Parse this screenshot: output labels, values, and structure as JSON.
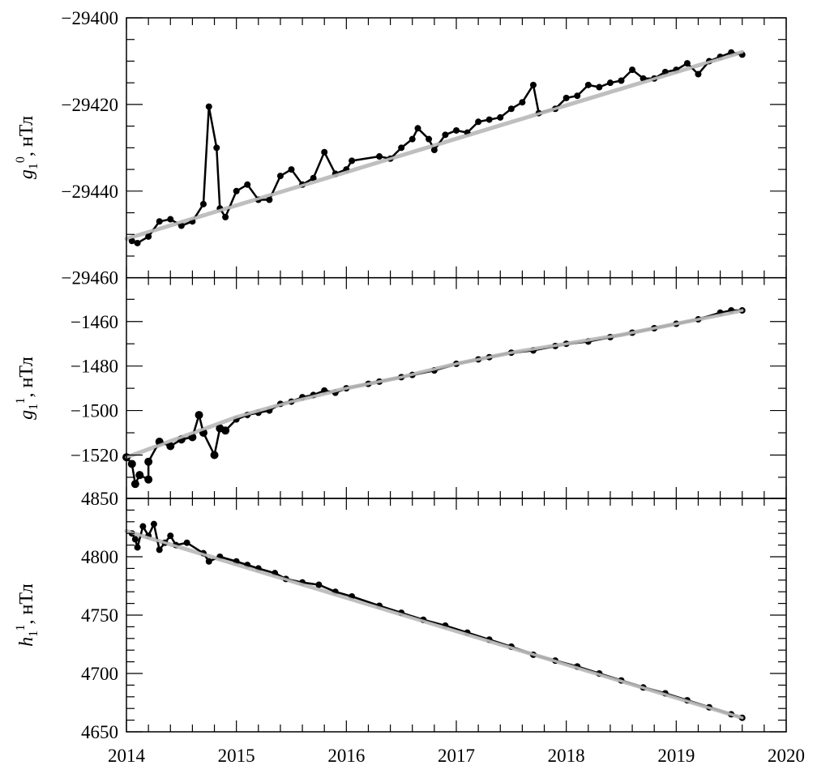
{
  "chart_data": {
    "type": "scatter",
    "x_axis": {
      "range": [
        2014,
        2020
      ],
      "ticks": [
        "2014",
        "2015",
        "2016",
        "2017",
        "2018",
        "2019",
        "2020"
      ],
      "minor_step": 0.2
    },
    "colors": {
      "points": "#000000",
      "fit": "#bfbfbf",
      "axes": "#000000"
    },
    "grid": false,
    "panels": [
      {
        "ylabel": {
          "symbol": "g",
          "sub": "1",
          "sup": "0",
          "unit": ", нТл"
        },
        "ylim": [
          -29460,
          -29400
        ],
        "yticks": [
          "-29460",
          "-29440",
          "-29420",
          "-29400"
        ],
        "ytick_values": [
          -29460,
          -29440,
          -29420,
          -29400
        ],
        "minor_step": 5,
        "points": [
          [
            2014.05,
            -29451.5
          ],
          [
            2014.1,
            -29452
          ],
          [
            2014.2,
            -29450.5
          ],
          [
            2014.3,
            -29447
          ],
          [
            2014.4,
            -29446.5
          ],
          [
            2014.5,
            -29448
          ],
          [
            2014.6,
            -29447
          ],
          [
            2014.7,
            -29443
          ],
          [
            2014.75,
            -29420.5
          ],
          [
            2014.82,
            -29430
          ],
          [
            2014.85,
            -29444
          ],
          [
            2014.9,
            -29446
          ],
          [
            2015.0,
            -29440
          ],
          [
            2015.1,
            -29438.5
          ],
          [
            2015.2,
            -29442
          ],
          [
            2015.3,
            -29442
          ],
          [
            2015.4,
            -29436.5
          ],
          [
            2015.5,
            -29435
          ],
          [
            2015.6,
            -29438.5
          ],
          [
            2015.7,
            -29437
          ],
          [
            2015.8,
            -29431
          ],
          [
            2015.9,
            -29436
          ],
          [
            2016.0,
            -29435
          ],
          [
            2016.05,
            -29433
          ],
          [
            2016.3,
            -29432
          ],
          [
            2016.4,
            -29432.5
          ],
          [
            2016.5,
            -29430
          ],
          [
            2016.6,
            -29428
          ],
          [
            2016.65,
            -29425.5
          ],
          [
            2016.75,
            -29428
          ],
          [
            2016.8,
            -29430.5
          ],
          [
            2016.9,
            -29427
          ],
          [
            2017.0,
            -29426
          ],
          [
            2017.1,
            -29426.5
          ],
          [
            2017.2,
            -29424
          ],
          [
            2017.3,
            -29423.5
          ],
          [
            2017.4,
            -29423
          ],
          [
            2017.5,
            -29421
          ],
          [
            2017.6,
            -29419.5
          ],
          [
            2017.7,
            -29415.5
          ],
          [
            2017.75,
            -29422
          ],
          [
            2017.9,
            -29421
          ],
          [
            2018.0,
            -29418.5
          ],
          [
            2018.1,
            -29418
          ],
          [
            2018.2,
            -29415.5
          ],
          [
            2018.3,
            -29416
          ],
          [
            2018.4,
            -29415
          ],
          [
            2018.5,
            -29414.5
          ],
          [
            2018.6,
            -29412
          ],
          [
            2018.7,
            -29414
          ],
          [
            2018.8,
            -29414
          ],
          [
            2018.9,
            -29412.5
          ],
          [
            2019.0,
            -29412
          ],
          [
            2019.1,
            -29410.5
          ],
          [
            2019.2,
            -29413
          ],
          [
            2019.3,
            -29410
          ],
          [
            2019.4,
            -29409
          ],
          [
            2019.5,
            -29408
          ],
          [
            2019.6,
            -29408.5
          ]
        ],
        "fit": [
          [
            2014.0,
            -29451
          ],
          [
            2019.6,
            -29407.9
          ]
        ]
      },
      {
        "ylabel": {
          "symbol": "g",
          "sub": "1",
          "sup": "1",
          "unit": ", нТл"
        },
        "ylim": [
          -1539.5,
          -1440.3
        ],
        "yticks": [
          "-1520",
          "-1500",
          "-1480",
          "-1460"
        ],
        "ytick_values": [
          -1520,
          -1500,
          -1480,
          -1460
        ],
        "minor_step": 10,
        "points": [
          [
            2014.0,
            -1521
          ],
          [
            2014.05,
            -1524
          ],
          [
            2014.08,
            -1533
          ],
          [
            2014.12,
            -1529
          ],
          [
            2014.2,
            -1531
          ],
          [
            2014.2,
            -1523
          ],
          [
            2014.3,
            -1514
          ],
          [
            2014.4,
            -1516
          ],
          [
            2014.5,
            -1513
          ],
          [
            2014.6,
            -1512
          ],
          [
            2014.66,
            -1502
          ],
          [
            2014.7,
            -1510
          ],
          [
            2014.8,
            -1520
          ],
          [
            2014.85,
            -1508
          ],
          [
            2014.9,
            -1509
          ],
          [
            2015.0,
            -1504
          ],
          [
            2015.1,
            -1502
          ],
          [
            2015.2,
            -1501
          ],
          [
            2015.3,
            -1500
          ],
          [
            2015.4,
            -1497
          ],
          [
            2015.5,
            -1496
          ],
          [
            2015.6,
            -1494
          ],
          [
            2015.7,
            -1493
          ],
          [
            2015.8,
            -1491
          ],
          [
            2015.9,
            -1492
          ],
          [
            2016.0,
            -1490
          ],
          [
            2016.2,
            -1488
          ],
          [
            2016.3,
            -1487
          ],
          [
            2016.5,
            -1485
          ],
          [
            2016.6,
            -1484
          ],
          [
            2016.8,
            -1482
          ],
          [
            2017.0,
            -1479
          ],
          [
            2017.2,
            -1477
          ],
          [
            2017.3,
            -1476
          ],
          [
            2017.5,
            -1474
          ],
          [
            2017.7,
            -1473
          ],
          [
            2017.9,
            -1471
          ],
          [
            2018.0,
            -1470
          ],
          [
            2018.2,
            -1469
          ],
          [
            2018.4,
            -1467
          ],
          [
            2018.6,
            -1465
          ],
          [
            2018.8,
            -1463
          ],
          [
            2019.0,
            -1461
          ],
          [
            2019.2,
            -1459
          ],
          [
            2019.4,
            -1456
          ],
          [
            2019.5,
            -1455
          ],
          [
            2019.6,
            -1455
          ]
        ],
        "fit": [
          [
            2014.0,
            -1521
          ],
          [
            2014.5,
            -1512
          ],
          [
            2015.0,
            -1503
          ],
          [
            2015.5,
            -1496
          ],
          [
            2016.0,
            -1490
          ],
          [
            2016.5,
            -1485
          ],
          [
            2017.0,
            -1479
          ],
          [
            2017.5,
            -1474
          ],
          [
            2018.0,
            -1470
          ],
          [
            2018.5,
            -1466
          ],
          [
            2019.0,
            -1461
          ],
          [
            2019.6,
            -1455
          ]
        ]
      },
      {
        "ylabel": {
          "symbol": "h",
          "sub": "1",
          "sup": "1",
          "unit": ", нТл"
        },
        "ylim": [
          4650,
          4850
        ],
        "yticks": [
          "4650",
          "4700",
          "4750",
          "4800",
          "4850"
        ],
        "ytick_values": [
          4650,
          4700,
          4750,
          4800,
          4850
        ],
        "minor_step": 10,
        "points": [
          [
            2014.05,
            4820
          ],
          [
            2014.08,
            4815
          ],
          [
            2014.1,
            4808
          ],
          [
            2014.15,
            4826
          ],
          [
            2014.2,
            4818
          ],
          [
            2014.25,
            4828
          ],
          [
            2014.3,
            4806
          ],
          [
            2014.35,
            4812
          ],
          [
            2014.4,
            4818
          ],
          [
            2014.45,
            4810
          ],
          [
            2014.55,
            4812
          ],
          [
            2014.7,
            4803
          ],
          [
            2014.75,
            4796
          ],
          [
            2014.85,
            4800
          ],
          [
            2015.0,
            4796
          ],
          [
            2015.1,
            4793
          ],
          [
            2015.2,
            4790
          ],
          [
            2015.35,
            4786
          ],
          [
            2015.45,
            4781
          ],
          [
            2015.6,
            4778
          ],
          [
            2015.75,
            4776
          ],
          [
            2015.9,
            4770
          ],
          [
            2016.05,
            4766
          ],
          [
            2016.3,
            4758
          ],
          [
            2016.5,
            4752
          ],
          [
            2016.7,
            4746
          ],
          [
            2016.9,
            4741
          ],
          [
            2017.1,
            4735
          ],
          [
            2017.3,
            4729
          ],
          [
            2017.5,
            4723
          ],
          [
            2017.7,
            4716
          ],
          [
            2017.9,
            4711
          ],
          [
            2018.1,
            4706
          ],
          [
            2018.3,
            4700
          ],
          [
            2018.5,
            4694
          ],
          [
            2018.7,
            4688
          ],
          [
            2018.9,
            4683
          ],
          [
            2019.1,
            4677
          ],
          [
            2019.3,
            4671
          ],
          [
            2019.5,
            4665
          ],
          [
            2019.6,
            4662
          ]
        ],
        "fit": [
          [
            2014.0,
            4822
          ],
          [
            2019.6,
            4662
          ]
        ]
      }
    ]
  }
}
